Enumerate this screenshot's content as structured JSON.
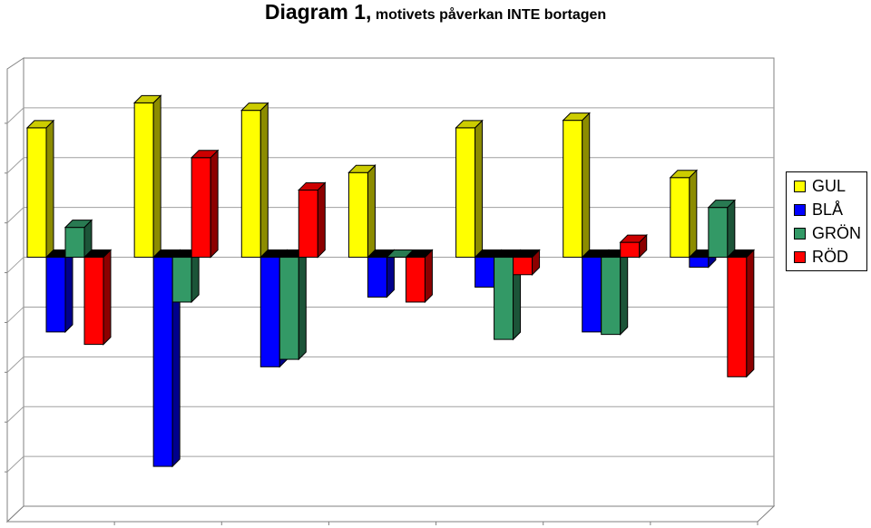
{
  "title": {
    "main": "Diagram 1,",
    "sub": " motivets påverkan INTE bortagen"
  },
  "chart_data": {
    "type": "bar",
    "style": "3d-clustered-column",
    "categories": [
      "",
      "",
      "",
      "",
      "",
      "",
      ""
    ],
    "series": [
      {
        "name": "GUL",
        "color": "#ffff00",
        "values": [
          2.6,
          3.1,
          2.95,
          1.7,
          2.6,
          2.75,
          1.6
        ]
      },
      {
        "name": "BLÅ",
        "color": "#0000ff",
        "values": [
          -1.5,
          -4.2,
          -2.2,
          -0.8,
          -0.6,
          -1.5,
          -0.2
        ]
      },
      {
        "name": "GRÖN",
        "color": "#339966",
        "values": [
          0.6,
          -0.9,
          -2.05,
          0.0,
          -1.65,
          -1.55,
          1.0
        ]
      },
      {
        "name": "RÖD",
        "color": "#ff0000",
        "values": [
          -1.75,
          2.0,
          1.35,
          -0.9,
          -0.35,
          0.3,
          -2.4
        ]
      }
    ],
    "ylim": [
      -5,
      4
    ],
    "grid": true,
    "legend": "right"
  }
}
